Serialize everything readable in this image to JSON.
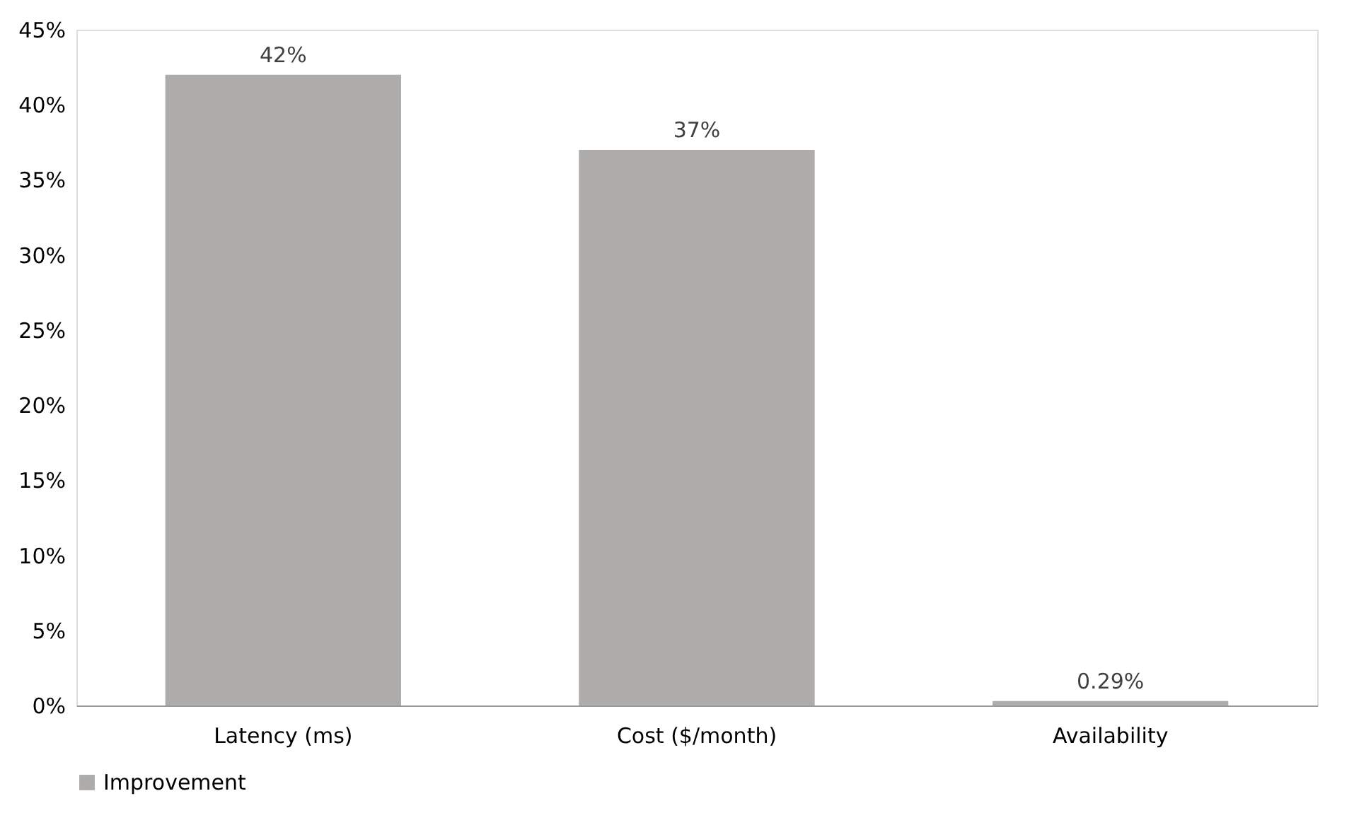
{
  "chart_data": {
    "type": "bar",
    "categories": [
      "Latency (ms)",
      "Cost ($/month)",
      "Availability"
    ],
    "series": [
      {
        "name": "Improvement",
        "color": "#aeabab",
        "values": [
          42,
          37,
          0.29
        ],
        "value_labels": [
          "42%",
          "37%",
          "0.29%"
        ]
      }
    ],
    "ylim": [
      0,
      45
    ],
    "yticks": [
      {
        "value": 0,
        "label": "0%"
      },
      {
        "value": 5,
        "label": "5%"
      },
      {
        "value": 10,
        "label": "10%"
      },
      {
        "value": 15,
        "label": "15%"
      },
      {
        "value": 20,
        "label": "20%"
      },
      {
        "value": 25,
        "label": "25%"
      },
      {
        "value": 30,
        "label": "30%"
      },
      {
        "value": 35,
        "label": "35%"
      },
      {
        "value": 40,
        "label": "40%"
      },
      {
        "value": 45,
        "label": "45%"
      }
    ],
    "grid": false,
    "legend": "bottom"
  }
}
